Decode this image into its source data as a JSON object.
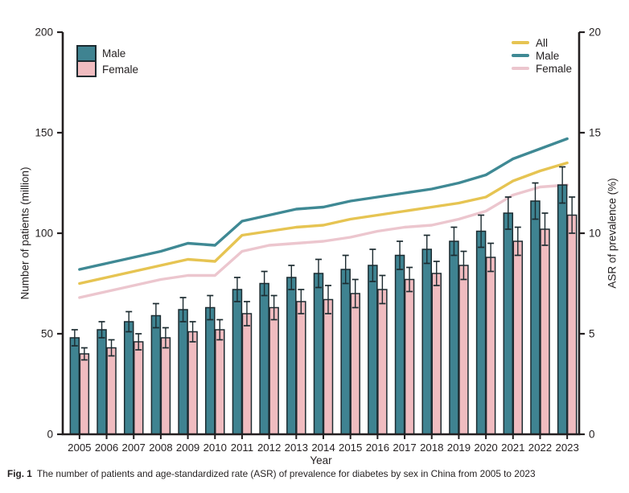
{
  "figure": {
    "caption_label": "Fig. 1",
    "caption_text": "The number of patients and age-standardized rate (ASR) of prevalence for diabetes by sex in China from 2005 to 2023"
  },
  "colors": {
    "bar_male": "#3f8391",
    "bar_female": "#f0bcc0",
    "bar_stroke": "#1c2b30",
    "line_all": "#e6c452",
    "line_male": "#3f8994",
    "line_female": "#ecc6ce",
    "axis": "#231f20",
    "text": "#231f20"
  },
  "chart_data": {
    "type": "bar",
    "title": "",
    "xlabel": "Year",
    "ylabel_left": "Number of patients (million)",
    "ylabel_right": "ASR of prevalence (%)",
    "y_left_range": [
      0,
      200
    ],
    "y_right_range": [
      0,
      20
    ],
    "y_left_ticks": [
      0,
      50,
      100,
      150,
      200
    ],
    "y_right_ticks": [
      0,
      5,
      10,
      15,
      20
    ],
    "grid": "off",
    "bar_legend_position": "top-left",
    "line_legend_position": "top-right",
    "categories": [
      "2005",
      "2006",
      "2007",
      "2008",
      "2009",
      "2010",
      "2011",
      "2012",
      "2013",
      "2014",
      "2015",
      "2016",
      "2017",
      "2018",
      "2019",
      "2020",
      "2021",
      "2022",
      "2023"
    ],
    "bar_series": [
      {
        "name": "Male",
        "key": "male",
        "axis": "left",
        "values": [
          48,
          52,
          56,
          59,
          62,
          63,
          72,
          75,
          78,
          80,
          82,
          84,
          89,
          92,
          96,
          101,
          110,
          116,
          124
        ],
        "err": [
          4,
          4,
          5,
          6,
          6,
          6,
          6,
          6,
          6,
          7,
          7,
          8,
          7,
          7,
          7,
          8,
          8,
          9,
          9
        ]
      },
      {
        "name": "Female",
        "key": "female",
        "axis": "left",
        "values": [
          40,
          43,
          46,
          48,
          51,
          52,
          60,
          63,
          66,
          67,
          70,
          72,
          77,
          80,
          84,
          88,
          96,
          102,
          109
        ],
        "err": [
          3,
          4,
          4,
          5,
          5,
          5,
          6,
          6,
          6,
          7,
          7,
          7,
          6,
          6,
          7,
          7,
          7,
          8,
          9
        ]
      }
    ],
    "line_series": [
      {
        "name": "All",
        "key": "all",
        "axis": "right",
        "values": [
          7.5,
          7.8,
          8.1,
          8.4,
          8.7,
          8.6,
          9.9,
          10.1,
          10.3,
          10.4,
          10.7,
          10.9,
          11.1,
          11.3,
          11.5,
          11.8,
          12.6,
          13.1,
          13.5
        ]
      },
      {
        "name": "Male",
        "key": "male",
        "axis": "right",
        "values": [
          8.2,
          8.5,
          8.8,
          9.1,
          9.5,
          9.4,
          10.6,
          10.9,
          11.2,
          11.3,
          11.6,
          11.8,
          12.0,
          12.2,
          12.5,
          12.9,
          13.7,
          14.2,
          14.7
        ]
      },
      {
        "name": "Female",
        "key": "female",
        "axis": "right",
        "values": [
          6.8,
          7.1,
          7.4,
          7.7,
          7.9,
          7.9,
          9.1,
          9.4,
          9.5,
          9.6,
          9.8,
          10.1,
          10.3,
          10.4,
          10.7,
          11.1,
          11.9,
          12.3,
          12.4
        ]
      }
    ]
  }
}
